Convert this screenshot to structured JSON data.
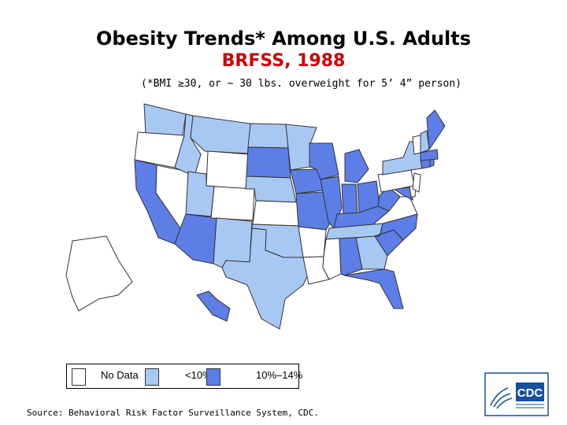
{
  "title": "Obesity Trends* Among U.S. Adults",
  "subtitle": "BRFSS, 1988",
  "note": "(*BMI ≥30, or ~ 30 lbs. overweight for 5’ 4” person)",
  "colors": {
    "no_data": "#ffffff",
    "lt10": "#a8c8f4",
    "10_14": "#5c7ee6",
    "border": "#333333",
    "subtitle": "#cc0000"
  },
  "legend": [
    {
      "key": "no_data",
      "label": "No Data"
    },
    {
      "key": "lt10",
      "label": "<10%"
    },
    {
      "key": "10_14",
      "label": "10%–14%"
    }
  ],
  "states": {
    "WA": "lt10",
    "OR": "no_data",
    "CA": "10_14",
    "NV": "no_data",
    "ID": "lt10",
    "MT": "lt10",
    "WY": "no_data",
    "UT": "lt10",
    "AZ": "10_14",
    "CO": "no_data",
    "NM": "lt10",
    "ND": "lt10",
    "SD": "10_14",
    "NE": "lt10",
    "KS": "no_data",
    "OK": "lt10",
    "TX": "lt10",
    "MN": "lt10",
    "IA": "10_14",
    "MO": "10_14",
    "AR": "no_data",
    "LA": "no_data",
    "WI": "10_14",
    "IL": "10_14",
    "MI": "10_14",
    "IN": "10_14",
    "OH": "10_14",
    "KY": "10_14",
    "TN": "lt10",
    "MS": "no_data",
    "AL": "10_14",
    "GA": "lt10",
    "FL": "10_14",
    "SC": "10_14",
    "NC": "10_14",
    "VA": "no_data",
    "WV": "10_14",
    "MD": "10_14",
    "DE": "no_data",
    "PA": "no_data",
    "NY": "lt10",
    "NJ": "no_data",
    "CT": "10_14",
    "RI": "10_14",
    "MA": "10_14",
    "VT": "no_data",
    "NH": "lt10",
    "ME": "10_14",
    "AK": "no_data",
    "HI": "10_14"
  },
  "source": "Source: Behavioral Risk Factor Surveillance System, CDC.",
  "logo_text": "CDC"
}
